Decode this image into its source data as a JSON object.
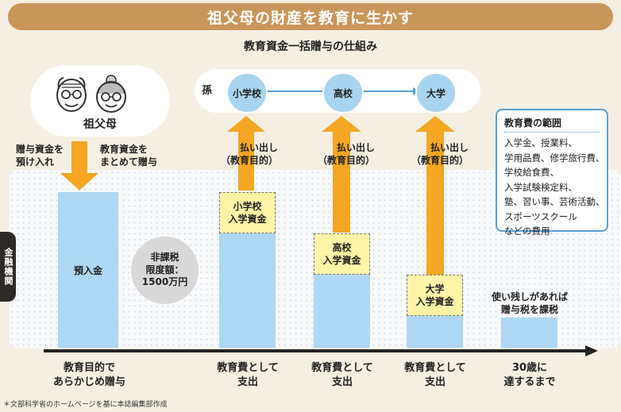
{
  "title": "祖父母の財産を教育に生かす",
  "subtitle": "教育資金一括贈与の仕組み",
  "grandparents": {
    "label": "祖父母"
  },
  "grandchild": {
    "label": "孫",
    "stages": [
      "小学校",
      "高校",
      "大学"
    ]
  },
  "deposit": {
    "left_note_line1": "贈与資金を",
    "left_note_line2": "預け入れ",
    "right_note_line1": "教育資金を",
    "right_note_line2": "まとめて贈与",
    "bar_label": "預入金"
  },
  "tax_free": {
    "line1": "非課税",
    "line2": "限度額：",
    "line3": "1500万円"
  },
  "withdrawal": {
    "line1": "払い出し",
    "line2": "（教育目的）"
  },
  "funds": [
    {
      "line1": "小学校",
      "line2": "入学資金"
    },
    {
      "line1": "高校",
      "line2": "入学資金"
    },
    {
      "line1": "大学",
      "line2": "入学資金"
    }
  ],
  "leftover_note": {
    "line1": "使い残しがあれば",
    "line2": "贈与税を課税"
  },
  "bank_tab": "金融機関",
  "timeline": [
    {
      "line1": "教育目的で",
      "line2": "あらかじめ贈与"
    },
    {
      "line1": "教育費として",
      "line2": "支出"
    },
    {
      "line1": "教育費として",
      "line2": "支出"
    },
    {
      "line1": "教育費として",
      "line2": "支出"
    },
    {
      "line1": "30歳に",
      "line2": "達するまで"
    }
  ],
  "range_box": {
    "title": "教育費の範囲",
    "items": [
      "入学金、授業料、",
      "学用品費、修学旅行費、",
      "学校給食費、",
      "入学試験検定料、",
      "塾、習い事、芸術活動、",
      "スポーツスクール",
      "などの費用"
    ]
  },
  "footnote": "＊文部科学省のホームページを基に本誌編集部作成",
  "colors": {
    "title_bg": "#c9965a",
    "arrow": "#f5a623",
    "bar": "#aed7f3",
    "fund_box": "#fff4a8",
    "range_border": "#5aa0d8"
  }
}
